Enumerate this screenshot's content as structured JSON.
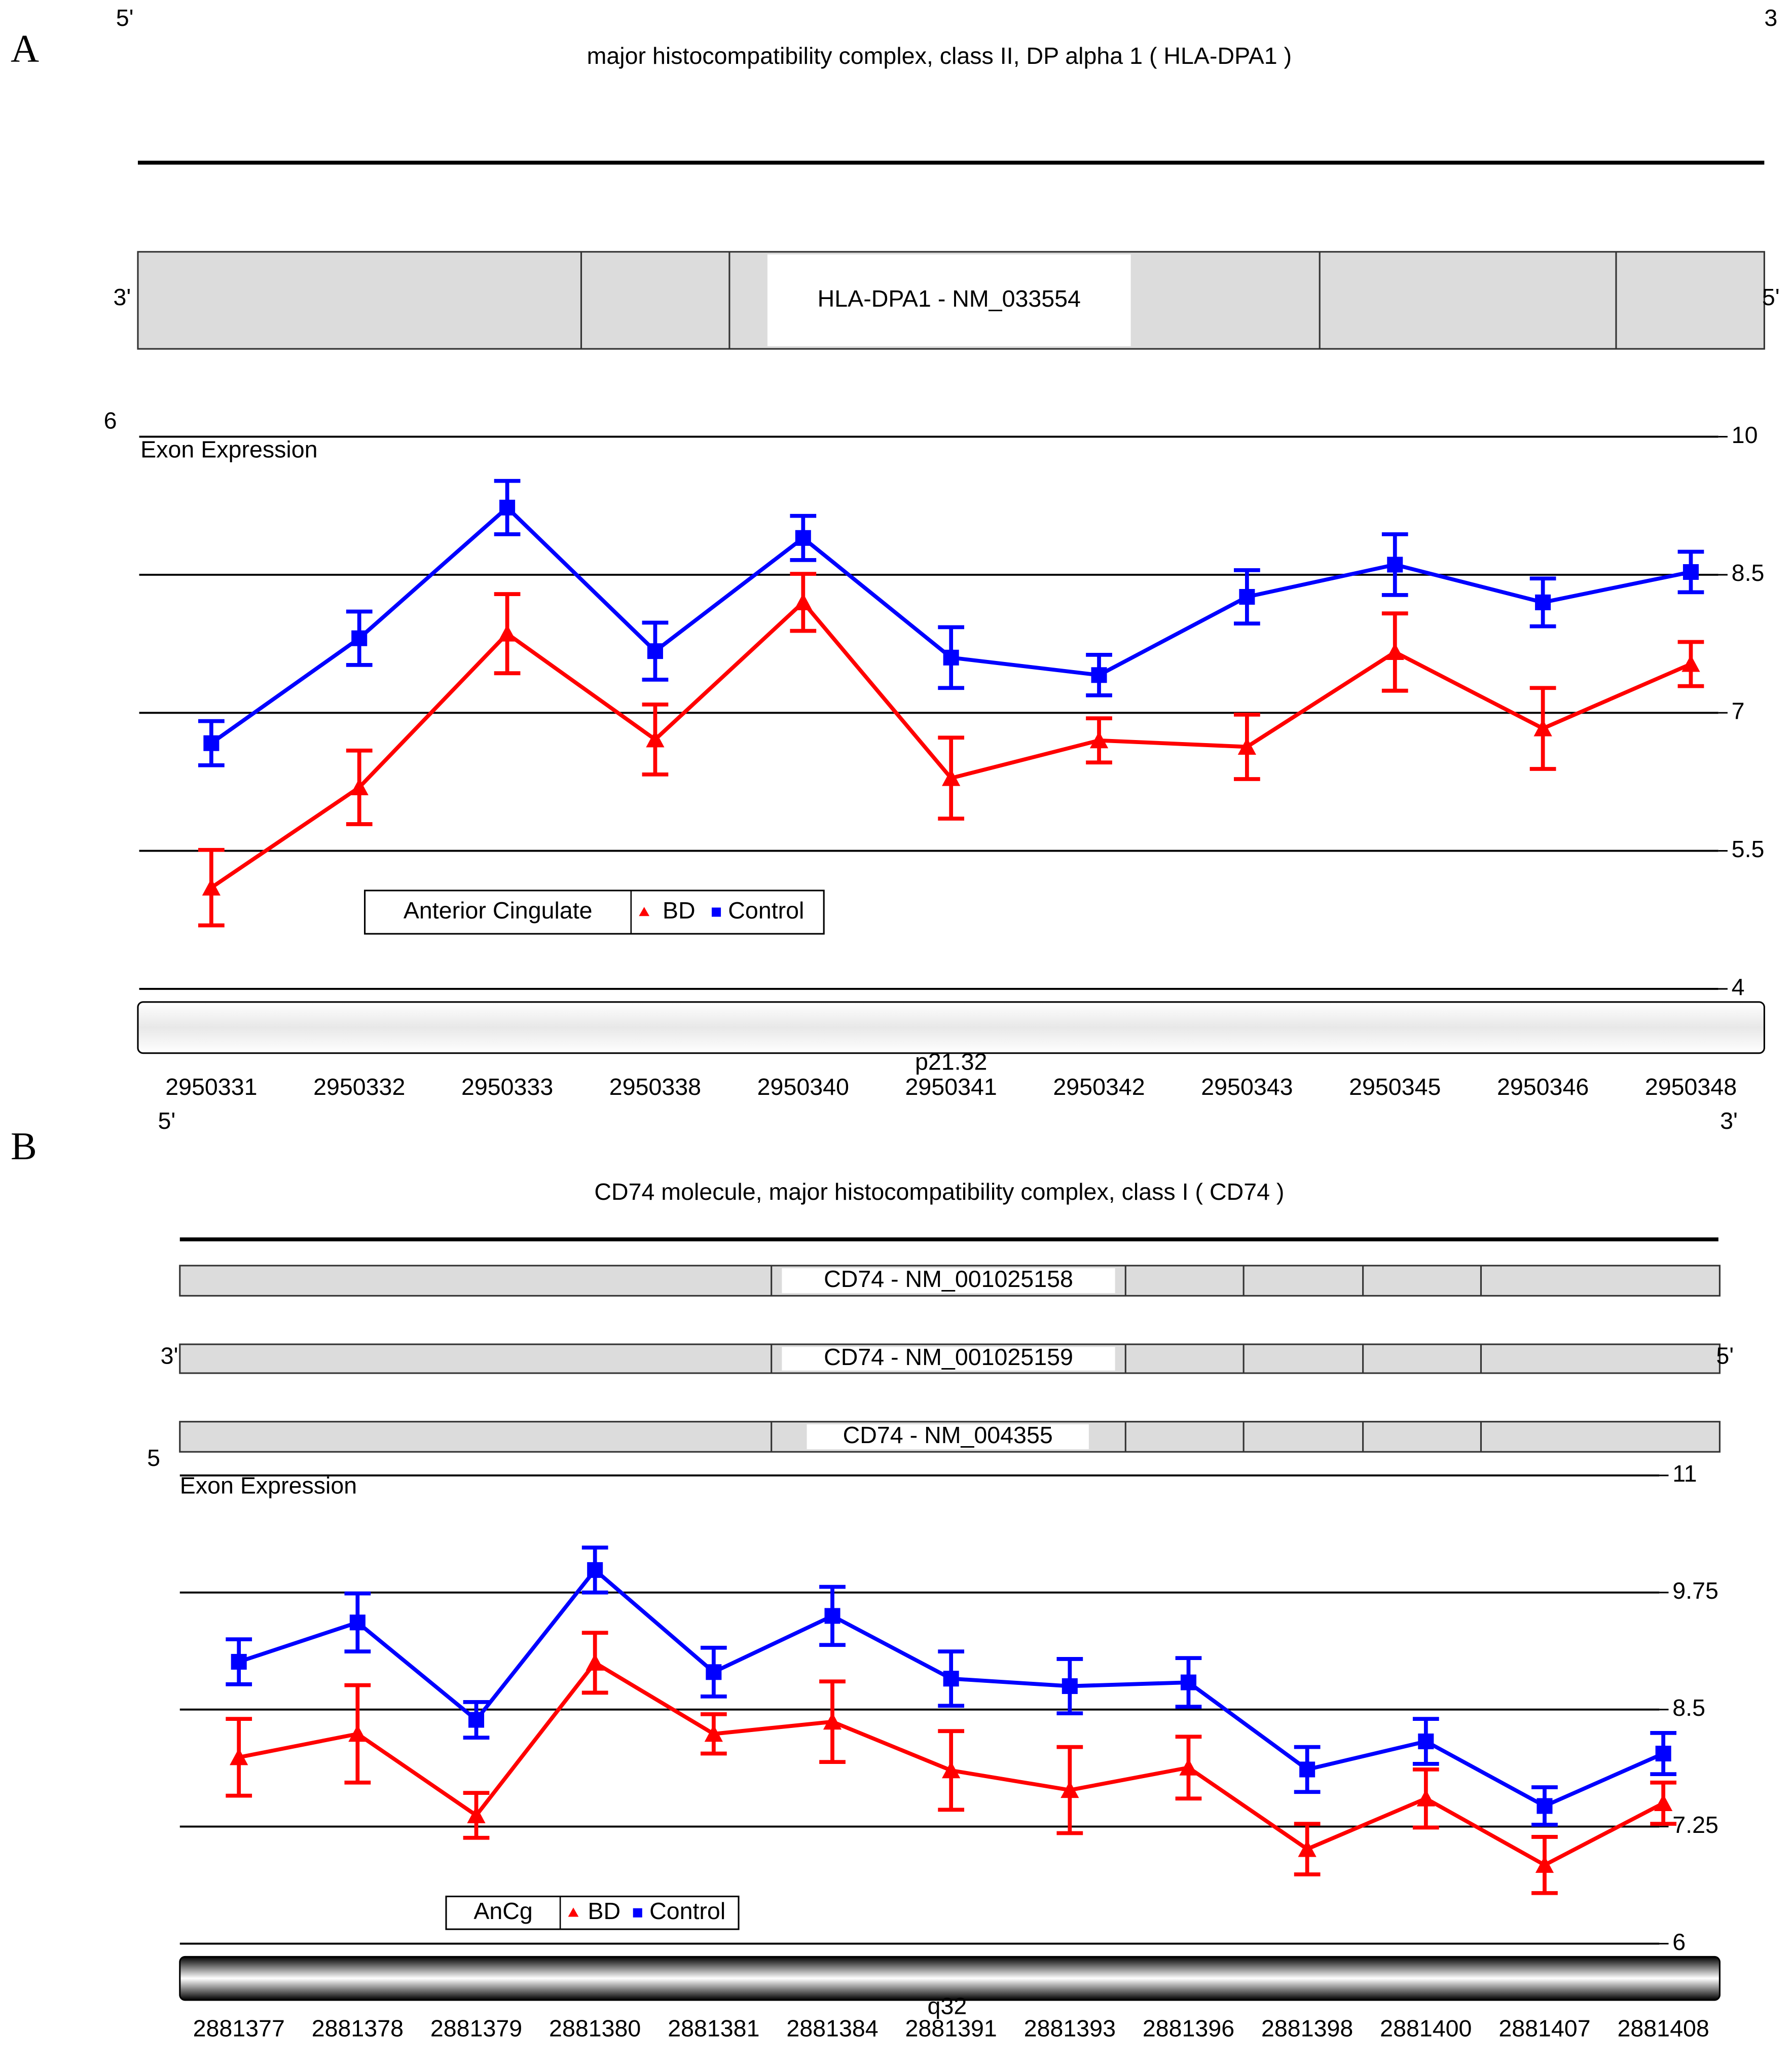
{
  "chart_data": [
    {
      "type": "line",
      "panel_label": "A",
      "title": "major histocompatibility complex, class II, DP alpha 1 ( HLA-DPA1 )",
      "strand_labels_top": [
        "5'",
        "3"
      ],
      "strand_labels_gene": [
        "3'",
        "5'"
      ],
      "transcripts": [
        "HLA-DPA1 - NM_033554"
      ],
      "chromosome": "6",
      "band": "p21.32",
      "y_axis_label": "Exon Expression",
      "legend_title": "Anterior Cingulate",
      "categories": [
        "2950331",
        "2950332",
        "2950333",
        "2950338",
        "2950340",
        "2950341",
        "2950342",
        "2950343",
        "2950345",
        "2950346",
        "2950348"
      ],
      "ylim": [
        4,
        10
      ],
      "yticks": [
        10,
        8.5,
        7,
        5.5,
        4
      ],
      "grid": true,
      "series": [
        {
          "name": "BD",
          "color": "#ff0000",
          "marker": "triangle",
          "values": [
            5.1,
            6.19,
            7.86,
            6.71,
            8.2,
            6.29,
            6.7,
            6.63,
            7.66,
            6.83,
            7.53
          ],
          "errors": [
            0.41,
            0.4,
            0.43,
            0.38,
            0.31,
            0.44,
            0.24,
            0.35,
            0.42,
            0.44,
            0.24
          ]
        },
        {
          "name": "Control",
          "color": "#0000ff",
          "marker": "square",
          "values": [
            6.67,
            7.81,
            9.23,
            7.67,
            8.9,
            7.6,
            7.41,
            8.26,
            8.61,
            8.2,
            8.53
          ],
          "errors": [
            0.24,
            0.29,
            0.29,
            0.31,
            0.24,
            0.33,
            0.22,
            0.29,
            0.33,
            0.26,
            0.22
          ]
        }
      ]
    },
    {
      "type": "line",
      "panel_label": "B",
      "title": "CD74 molecule, major histocompatibility complex, class I ( CD74 )",
      "strand_labels_top": [
        "5'",
        "3'"
      ],
      "strand_labels_gene": [
        "3'",
        "5'"
      ],
      "transcripts": [
        "CD74 - NM_001025158",
        "CD74 - NM_001025159",
        "CD74 - NM_004355"
      ],
      "chromosome": "5",
      "band": "q32",
      "y_axis_label": "Exon Expression",
      "legend_title": "AnCg",
      "categories": [
        "2881377",
        "2881378",
        "2881379",
        "2881380",
        "2881381",
        "2881384",
        "2881391",
        "2881393",
        "2881396",
        "2881398",
        "2881400",
        "2881407",
        "2881408"
      ],
      "ylim": [
        6,
        11
      ],
      "yticks": [
        11,
        9.75,
        8.5,
        7.25,
        6
      ],
      "grid": true,
      "series": [
        {
          "name": "BD",
          "color": "#ff0000",
          "marker": "triangle",
          "values": [
            7.99,
            8.24,
            7.37,
            9.0,
            8.24,
            8.37,
            7.85,
            7.64,
            7.88,
            7.01,
            7.55,
            6.84,
            7.5
          ],
          "errors": [
            0.41,
            0.52,
            0.24,
            0.32,
            0.21,
            0.43,
            0.42,
            0.46,
            0.33,
            0.27,
            0.31,
            0.3,
            0.22
          ]
        },
        {
          "name": "Control",
          "color": "#0000ff",
          "marker": "square",
          "values": [
            9.01,
            9.43,
            8.39,
            9.99,
            8.9,
            9.5,
            8.83,
            8.75,
            8.79,
            7.86,
            8.16,
            7.47,
            8.03
          ],
          "errors": [
            0.24,
            0.31,
            0.19,
            0.24,
            0.26,
            0.31,
            0.29,
            0.29,
            0.26,
            0.24,
            0.24,
            0.2,
            0.22
          ]
        }
      ]
    }
  ]
}
